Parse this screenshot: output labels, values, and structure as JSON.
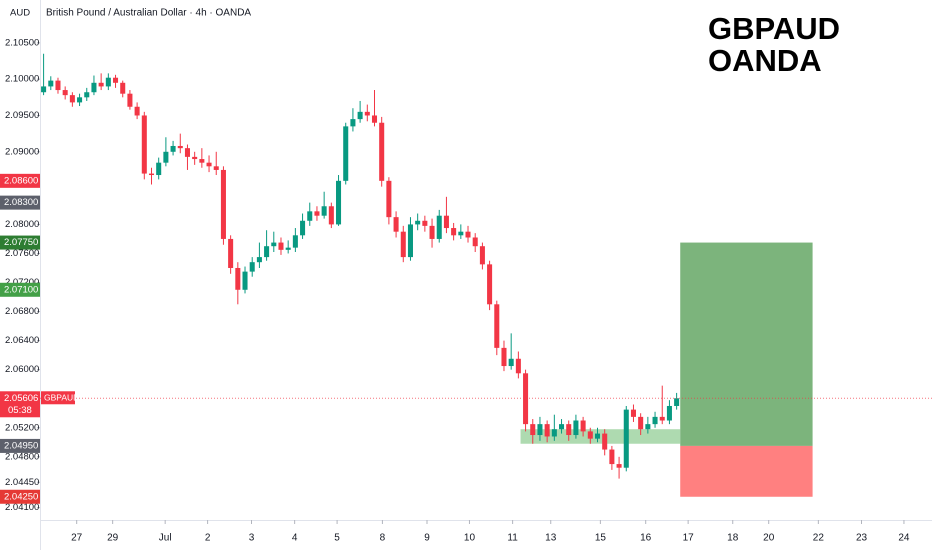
{
  "chart_data": {
    "type": "candlestick",
    "title": "British Pound / Australian Dollar · 4h · OANDA",
    "y_label": "AUD",
    "watermark": [
      "GBPAUD",
      "OANDA"
    ],
    "up_color": "#089981",
    "down_color": "#f23645",
    "open": [
      2.0982,
      2.099,
      2.0998,
      2.0985,
      2.0978,
      2.0968,
      2.0975,
      2.0982,
      2.0995,
      2.099,
      2.1002,
      2.0995,
      2.098,
      2.0962,
      2.095,
      2.087,
      2.0868,
      2.0885,
      2.09,
      2.0908,
      2.0905,
      2.0893,
      2.089,
      2.0885,
      2.088,
      2.0875,
      2.078,
      2.074,
      2.071,
      2.0735,
      2.0748,
      2.0755,
      2.077,
      2.0775,
      2.0765,
      2.0768,
      2.0785,
      2.0805,
      2.0818,
      2.0812,
      2.0825,
      2.08,
      2.086,
      2.0935,
      2.0945,
      2.0955,
      2.095,
      2.094,
      2.086,
      2.081,
      2.079,
      2.0755,
      2.08,
      2.0805,
      2.0798,
      2.078,
      2.0812,
      2.0795,
      2.0785,
      2.079,
      2.0782,
      2.077,
      2.0745,
      2.069,
      2.063,
      2.0605,
      2.0615,
      2.0595,
      2.0525,
      2.051,
      2.0525,
      2.0508,
      2.0518,
      2.0525,
      2.051,
      2.053,
      2.0515,
      2.0505,
      2.0512,
      2.049,
      2.047,
      2.0465,
      2.0545,
      2.0535,
      2.0518,
      2.0525,
      2.0535,
      2.053,
      2.055
    ],
    "high": [
      2.1035,
      2.1004,
      2.1002,
      2.099,
      2.0982,
      2.098,
      2.0988,
      2.1005,
      2.1008,
      2.1008,
      2.1006,
      2.0998,
      2.0985,
      2.0968,
      2.0955,
      2.0878,
      2.0892,
      2.092,
      2.0915,
      2.0925,
      2.091,
      2.09,
      2.0905,
      2.0895,
      2.09,
      2.088,
      2.0785,
      2.0748,
      2.0742,
      2.0755,
      2.0775,
      2.0792,
      2.079,
      2.0782,
      2.0778,
      2.0795,
      2.0815,
      2.083,
      2.0825,
      2.0845,
      2.083,
      2.0868,
      2.094,
      2.096,
      2.097,
      2.0965,
      2.0985,
      2.0948,
      2.0865,
      2.0818,
      2.0798,
      2.081,
      2.0815,
      2.0812,
      2.0808,
      2.082,
      2.0838,
      2.0802,
      2.08,
      2.0798,
      2.0788,
      2.0775,
      2.075,
      2.0695,
      2.064,
      2.065,
      2.0625,
      2.06,
      2.0532,
      2.0535,
      2.053,
      2.0538,
      2.0532,
      2.053,
      2.0538,
      2.0535,
      2.052,
      2.052,
      2.0518,
      2.0495,
      2.048,
      2.055,
      2.0552,
      2.054,
      2.0535,
      2.0542,
      2.0578,
      2.0558,
      2.0568
    ],
    "low": [
      2.0978,
      2.0985,
      2.098,
      2.0972,
      2.0962,
      2.0963,
      2.097,
      2.0978,
      2.0985,
      2.0985,
      2.0988,
      2.0975,
      2.0958,
      2.0945,
      2.0862,
      2.0855,
      2.0862,
      2.088,
      2.0895,
      2.0898,
      2.0875,
      2.0882,
      2.0878,
      2.0872,
      2.0868,
      2.0772,
      2.0732,
      2.069,
      2.0705,
      2.0728,
      2.074,
      2.075,
      2.0762,
      2.0758,
      2.076,
      2.0762,
      2.078,
      2.0798,
      2.0805,
      2.0808,
      2.0795,
      2.0798,
      2.0855,
      2.0928,
      2.094,
      2.0942,
      2.0935,
      2.0852,
      2.08,
      2.0782,
      2.0748,
      2.075,
      2.0792,
      2.079,
      2.0768,
      2.0775,
      2.0788,
      2.0778,
      2.078,
      2.0775,
      2.0762,
      2.0738,
      2.0682,
      2.062,
      2.0598,
      2.06,
      2.0588,
      2.0515,
      2.0498,
      2.0502,
      2.05,
      2.0502,
      2.0512,
      2.0502,
      2.0505,
      2.0508,
      2.0498,
      2.05,
      2.0482,
      2.0462,
      2.045,
      2.046,
      2.0528,
      2.051,
      2.0512,
      2.052,
      2.0525,
      2.0525,
      2.0545
    ],
    "close": [
      2.099,
      2.0998,
      2.0985,
      2.0978,
      2.0968,
      2.0975,
      2.0982,
      2.0995,
      2.099,
      2.1002,
      2.0995,
      2.098,
      2.0962,
      2.095,
      2.087,
      2.0868,
      2.0885,
      2.09,
      2.0908,
      2.0905,
      2.0893,
      2.089,
      2.0885,
      2.088,
      2.0875,
      2.078,
      2.074,
      2.071,
      2.0735,
      2.0748,
      2.0755,
      2.077,
      2.0775,
      2.0765,
      2.0768,
      2.0785,
      2.0805,
      2.0818,
      2.0812,
      2.0825,
      2.08,
      2.086,
      2.0935,
      2.0945,
      2.0955,
      2.095,
      2.094,
      2.086,
      2.081,
      2.079,
      2.0755,
      2.08,
      2.0805,
      2.0798,
      2.078,
      2.0812,
      2.0795,
      2.0785,
      2.079,
      2.0782,
      2.077,
      2.0745,
      2.069,
      2.063,
      2.0605,
      2.0615,
      2.0595,
      2.0525,
      2.051,
      2.0525,
      2.0508,
      2.0518,
      2.0525,
      2.051,
      2.053,
      2.0515,
      2.0505,
      2.0512,
      2.049,
      2.047,
      2.0465,
      2.0545,
      2.0535,
      2.0518,
      2.0525,
      2.0535,
      2.053,
      2.055,
      2.05606
    ],
    "xlim": [
      -0.5,
      123.5
    ],
    "ylim": [
      2.0393,
      2.1109
    ],
    "xticks": [
      {
        "value": 4.6,
        "label": "27"
      },
      {
        "value": 9.6,
        "label": "29"
      },
      {
        "value": 16.9,
        "label": "Jul"
      },
      {
        "value": 22.8,
        "label": "2"
      },
      {
        "value": 28.9,
        "label": "3"
      },
      {
        "value": 34.9,
        "label": "4"
      },
      {
        "value": 40.8,
        "label": "5"
      },
      {
        "value": 47.1,
        "label": "8"
      },
      {
        "value": 53.3,
        "label": "9"
      },
      {
        "value": 59.2,
        "label": "10"
      },
      {
        "value": 65.2,
        "label": "11"
      },
      {
        "value": 70.5,
        "label": "13"
      },
      {
        "value": 77.4,
        "label": "15"
      },
      {
        "value": 83.7,
        "label": "16"
      },
      {
        "value": 89.6,
        "label": "17"
      },
      {
        "value": 95.8,
        "label": "18"
      },
      {
        "value": 100.8,
        "label": "20"
      },
      {
        "value": 107.7,
        "label": "22"
      },
      {
        "value": 113.7,
        "label": "23"
      },
      {
        "value": 119.6,
        "label": "24"
      }
    ],
    "yticks": [
      {
        "value": 2.105,
        "label": "2.10500"
      },
      {
        "value": 2.1,
        "label": "2.10000"
      },
      {
        "value": 2.095,
        "label": "2.09500"
      },
      {
        "value": 2.09,
        "label": "2.09000"
      },
      {
        "value": 2.08,
        "label": "2.08000"
      },
      {
        "value": 2.076,
        "label": "2.07600"
      },
      {
        "value": 2.072,
        "label": "2.07200"
      },
      {
        "value": 2.068,
        "label": "2.06800"
      },
      {
        "value": 2.064,
        "label": "2.06400"
      },
      {
        "value": 2.06,
        "label": "2.06000"
      },
      {
        "value": 2.052,
        "label": "2.05200"
      },
      {
        "value": 2.048,
        "label": "2.04800"
      },
      {
        "value": 2.0445,
        "label": "2.04450"
      },
      {
        "value": 2.041,
        "label": "2.04100"
      }
    ],
    "price_tags": [
      {
        "value": 2.086,
        "label": "2.08600",
        "color": "#f23645"
      },
      {
        "value": 2.083,
        "label": "2.08300",
        "color": "#5d606b"
      },
      {
        "value": 2.0775,
        "label": "2.07750",
        "color": "#2e7d32"
      },
      {
        "value": 2.071,
        "label": "2.07100",
        "color": "#43a047"
      },
      {
        "value": 2.05606,
        "label": "2.05606",
        "color": "#f23645",
        "symbol": "GBPAUD",
        "countdown": "05:38"
      },
      {
        "value": 2.0495,
        "label": "2.04950",
        "color": "#5d606b"
      },
      {
        "value": 2.0425,
        "label": "2.04250",
        "color": "#e53935"
      }
    ],
    "zone": {
      "x": [
        66.3,
        88.5
      ],
      "y": [
        2.0498,
        2.0518
      ],
      "color": "#a5d6a7"
    },
    "position": {
      "x": [
        88.5,
        106.9
      ],
      "entry": 2.0495,
      "target": 2.0775,
      "stop": 2.0425,
      "profit_color": "#7cb47c",
      "loss_color": "#ff8080"
    }
  }
}
